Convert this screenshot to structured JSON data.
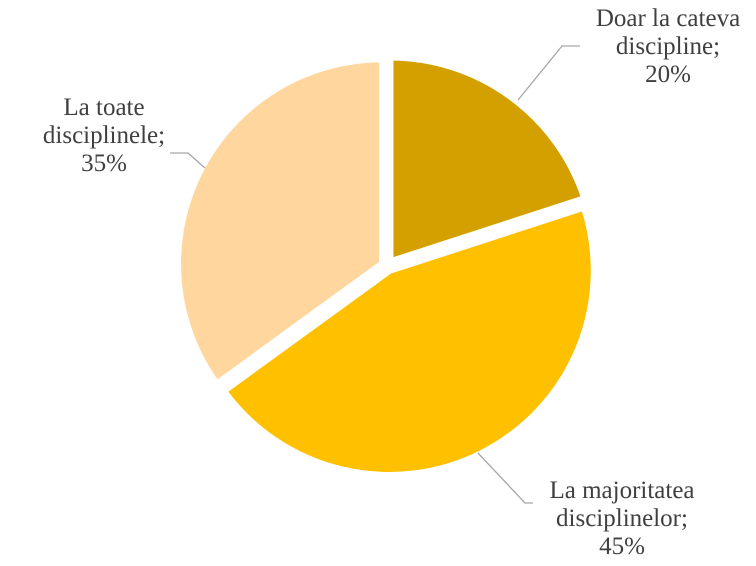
{
  "chart_data": {
    "type": "pie",
    "title": "",
    "slices": [
      {
        "label": "Doar la cateva discipline",
        "value": 20,
        "percent_label": "20%",
        "label_lines": [
          "Doar la cateva",
          "discipline;",
          "20%"
        ],
        "color": "#D4A000"
      },
      {
        "label": "La majoritatea disciplinelor",
        "value": 45,
        "percent_label": "45%",
        "label_lines": [
          "La majoritatea",
          "disciplinelor;",
          "45%"
        ],
        "color": "#FFC000"
      },
      {
        "label": "La toate disciplinele",
        "value": 35,
        "percent_label": "35%",
        "label_lines": [
          "La toate",
          "disciplinele;",
          "35%"
        ],
        "color": "#FFD79E"
      }
    ],
    "start_angle_deg": 0,
    "direction": "clockwise",
    "legend": "none",
    "data_labels": "outside-with-leader-lines"
  }
}
